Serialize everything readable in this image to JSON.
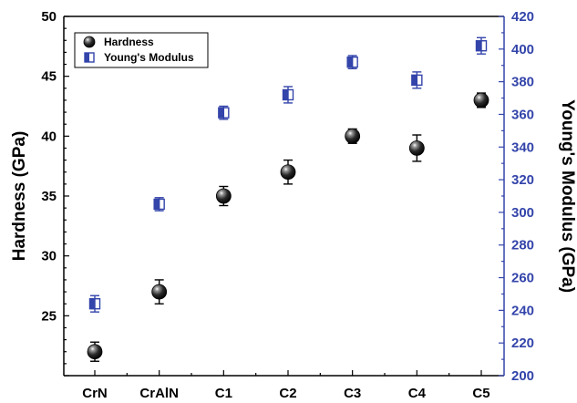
{
  "chart_data": {
    "type": "scatter",
    "categories": [
      "CrN",
      "CrAlN",
      "C1",
      "C2",
      "C3",
      "C4",
      "C5"
    ],
    "ylabel_left": "Hardness (GPa)",
    "ylabel_right": "Young's Modulus (GPa)",
    "ylim_left": [
      20,
      50
    ],
    "ylim_right": [
      200,
      420
    ],
    "yticks_left": [
      25,
      30,
      35,
      40,
      45,
      50
    ],
    "yticks_right": [
      200,
      220,
      240,
      260,
      280,
      300,
      320,
      340,
      360,
      380,
      400,
      420
    ],
    "grid": false,
    "legend_position": "top-left",
    "colors": {
      "hardness": "#000000",
      "modulus": "#3344aa",
      "left_axis": "#000000",
      "right_axis": "#3344aa"
    },
    "series": [
      {
        "name": "Hardness",
        "axis": "left",
        "marker": "sphere",
        "values": [
          22,
          27,
          35,
          37,
          40,
          39,
          43
        ],
        "errors": [
          0.8,
          1.0,
          0.8,
          1.0,
          0.6,
          1.1,
          0.6
        ]
      },
      {
        "name": "Young's Modulus",
        "axis": "right",
        "marker": "half-filled-square",
        "values": [
          244,
          305,
          361,
          372,
          392,
          381,
          402
        ],
        "errors": [
          5,
          4,
          4,
          5,
          4,
          5,
          5
        ]
      }
    ]
  }
}
